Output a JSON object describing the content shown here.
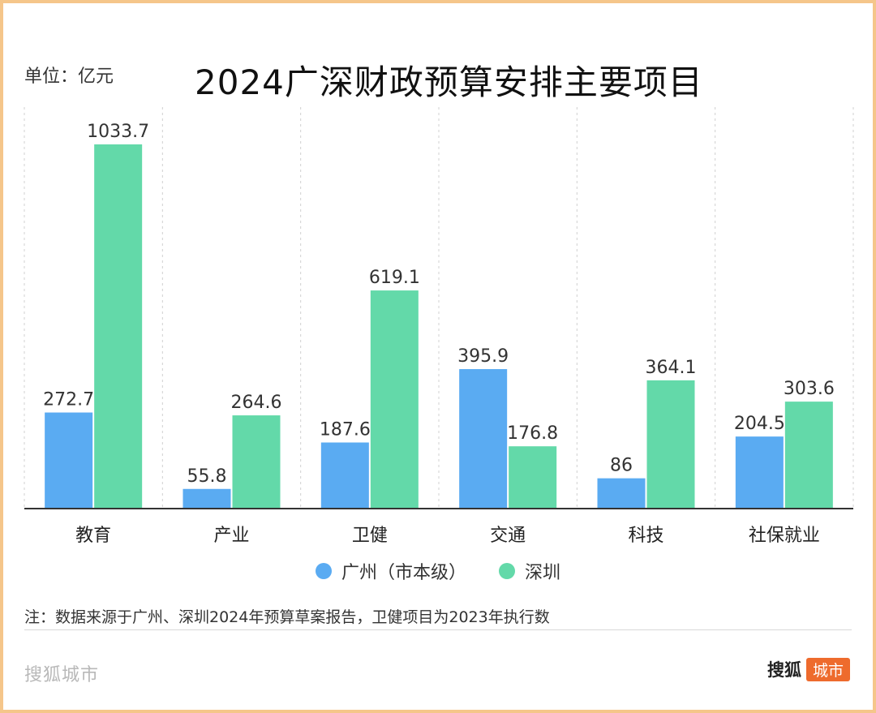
{
  "chart_data": {
    "type": "bar",
    "title": "2024广深财政预算安排主要项目",
    "unit": "单位：亿元",
    "categories": [
      "教育",
      "产业",
      "卫健",
      "交通",
      "科技",
      "社保就业"
    ],
    "series": [
      {
        "name": "广州（市本级）",
        "color": "#5aabf2",
        "values": [
          272.7,
          55.8,
          187.6,
          395.9,
          86,
          204.5
        ]
      },
      {
        "name": "深圳",
        "color": "#63d9a9",
        "values": [
          1033.7,
          264.6,
          619.1,
          176.8,
          364.1,
          303.6
        ]
      }
    ],
    "ylim": [
      0,
      1033.7
    ],
    "grid": "vertical-dashed",
    "legend_position": "bottom-center"
  },
  "footnote": "注：数据来源于广州、深圳2024年预算草案报告，卫健项目为2023年执行数",
  "watermark": "搜狐城市",
  "brand": {
    "main": "搜狐",
    "tag": "城市"
  }
}
